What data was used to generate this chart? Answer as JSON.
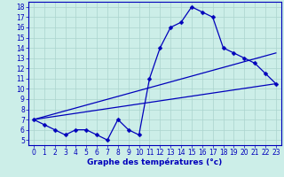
{
  "title": "Graphe des températures (°c)",
  "background_color": "#cceee8",
  "grid_color": "#aad4ce",
  "line_color": "#0000bb",
  "xlim": [
    -0.5,
    23.5
  ],
  "ylim": [
    4.5,
    18.5
  ],
  "yticks": [
    5,
    6,
    7,
    8,
    9,
    10,
    11,
    12,
    13,
    14,
    15,
    16,
    17,
    18
  ],
  "xticks": [
    0,
    1,
    2,
    3,
    4,
    5,
    6,
    7,
    8,
    9,
    10,
    11,
    12,
    13,
    14,
    15,
    16,
    17,
    18,
    19,
    20,
    21,
    22,
    23
  ],
  "main_x": [
    0,
    1,
    2,
    3,
    4,
    5,
    6,
    7,
    8,
    9,
    10,
    11,
    12,
    13,
    14,
    15,
    16,
    17,
    18,
    19,
    20,
    21,
    22,
    23
  ],
  "main_y": [
    7.0,
    6.5,
    6.0,
    5.5,
    6.0,
    6.0,
    5.5,
    5.0,
    7.0,
    6.0,
    5.5,
    11.0,
    14.0,
    16.0,
    16.5,
    18.0,
    17.5,
    17.0,
    14.0,
    13.5,
    13.0,
    12.5,
    11.5,
    10.5
  ],
  "line2_x": [
    0,
    23
  ],
  "line2_y": [
    7.0,
    10.5
  ],
  "line3_x": [
    0,
    23
  ],
  "line3_y": [
    7.0,
    13.5
  ],
  "marker_size": 2.5,
  "linewidth": 0.9,
  "xlabel_fontsize": 6.5,
  "tick_fontsize": 5.5
}
